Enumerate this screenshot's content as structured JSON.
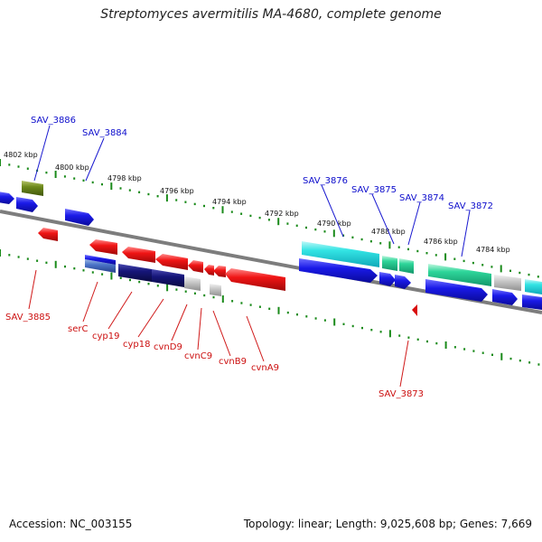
{
  "title": "Streptomyces avermitilis MA-4680, complete genome",
  "footer": {
    "accession": "Accession: NC_003155",
    "summary": "Topology: linear; Length: 9,025,608 bp; Genes: 7,669"
  },
  "colors": {
    "backbone": "#7a7a7a",
    "ticks": "#1a8a1a",
    "plus_label": "#0d0dcc",
    "minus_label": "#cc0f0f"
  },
  "scale_labels": [
    "4802 kbp",
    "4800 kbp",
    "4798 kbp",
    "4796 kbp",
    "4794 kbp",
    "4792 kbp",
    "4790 kbp",
    "4788 kbp",
    "4786 kbp",
    "4784 kbp"
  ],
  "upper_gene_labels": [
    "SAV_3886",
    "SAV_3884",
    "SAV_3876",
    "SAV_3875",
    "SAV_3874",
    "SAV_3872"
  ],
  "lower_gene_labels": [
    "SAV_3885",
    "serC",
    "cyp19",
    "cyp18",
    "cvnD9",
    "cvnC9",
    "cvnB9",
    "cvnA9",
    "SAV_3873"
  ]
}
